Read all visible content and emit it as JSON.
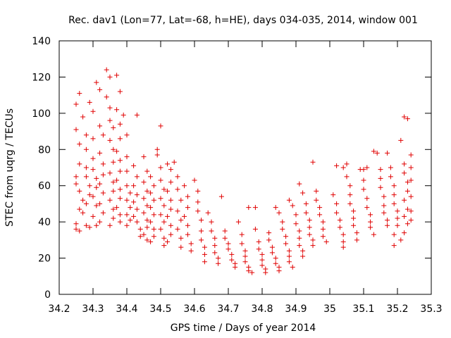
{
  "chart_data": {
    "type": "scatter",
    "title": "Rec. dav1 (Lon=77, Lat=-68, h=HE), days 034-035, 2014, window 001",
    "xlabel": "GPS time / Days of year 2014",
    "ylabel": "STEC from uqrg / TECUs",
    "xlim": [
      34.2,
      35.3
    ],
    "ylim": [
      0,
      140
    ],
    "x_ticks": [
      "34.2",
      "34.3",
      "34.4",
      "34.5",
      "34.6",
      "34.7",
      "34.8",
      "34.9",
      "35",
      "35.1",
      "35.2",
      "35.3"
    ],
    "y_ticks": [
      "0",
      "20",
      "40",
      "60",
      "80",
      "100",
      "120",
      "140"
    ],
    "grid": false,
    "marker": "plus",
    "color": "#e00000",
    "series": [
      {
        "points": [
          [
            34.25,
            105
          ],
          [
            34.25,
            91
          ],
          [
            34.26,
            83
          ],
          [
            34.26,
            72
          ],
          [
            34.25,
            65
          ],
          [
            34.25,
            61
          ],
          [
            34.26,
            57
          ],
          [
            34.27,
            52
          ],
          [
            34.26,
            47
          ],
          [
            34.25,
            39
          ],
          [
            34.25,
            36
          ],
          [
            34.26,
            35
          ],
          [
            34.26,
            111
          ],
          [
            34.27,
            98
          ],
          [
            34.28,
            88
          ],
          [
            34.28,
            80
          ],
          [
            34.28,
            70
          ],
          [
            34.28,
            65
          ],
          [
            34.29,
            60
          ],
          [
            34.29,
            55
          ],
          [
            34.28,
            50
          ],
          [
            34.27,
            45
          ],
          [
            34.28,
            38
          ],
          [
            34.29,
            37
          ],
          [
            34.29,
            106
          ],
          [
            34.3,
            101
          ],
          [
            34.3,
            86
          ],
          [
            34.3,
            75
          ],
          [
            34.3,
            69
          ],
          [
            34.31,
            64
          ],
          [
            34.31,
            59
          ],
          [
            34.3,
            54
          ],
          [
            34.31,
            49
          ],
          [
            34.3,
            43
          ],
          [
            34.31,
            38
          ],
          [
            34.31,
            117
          ],
          [
            34.32,
            113
          ],
          [
            34.32,
            93
          ],
          [
            34.33,
            88
          ],
          [
            34.32,
            78
          ],
          [
            34.33,
            72
          ],
          [
            34.33,
            66
          ],
          [
            34.32,
            61
          ],
          [
            34.33,
            56
          ],
          [
            34.32,
            50
          ],
          [
            34.33,
            45
          ],
          [
            34.32,
            40
          ],
          [
            34.34,
            124
          ],
          [
            34.35,
            120
          ],
          [
            34.34,
            109
          ],
          [
            34.35,
            103
          ],
          [
            34.35,
            96
          ],
          [
            34.36,
            92
          ],
          [
            34.35,
            85
          ],
          [
            34.36,
            80
          ],
          [
            34.36,
            73
          ],
          [
            34.35,
            67
          ],
          [
            34.36,
            62
          ],
          [
            34.36,
            57
          ],
          [
            34.35,
            52
          ],
          [
            34.36,
            47
          ],
          [
            34.36,
            42
          ],
          [
            34.35,
            38
          ],
          [
            34.37,
            121
          ],
          [
            34.38,
            112
          ],
          [
            34.37,
            102
          ],
          [
            34.38,
            94
          ],
          [
            34.38,
            86
          ],
          [
            34.37,
            79
          ],
          [
            34.38,
            74
          ],
          [
            34.38,
            68
          ],
          [
            34.37,
            63
          ],
          [
            34.38,
            58
          ],
          [
            34.38,
            53
          ],
          [
            34.37,
            48
          ],
          [
            34.38,
            44
          ],
          [
            34.38,
            40
          ],
          [
            34.39,
            99
          ],
          [
            34.4,
            88
          ],
          [
            34.4,
            76
          ],
          [
            34.4,
            68
          ],
          [
            34.4,
            60
          ],
          [
            34.41,
            56
          ],
          [
            34.4,
            52
          ],
          [
            34.41,
            48
          ],
          [
            34.4,
            44
          ],
          [
            34.41,
            41
          ],
          [
            34.4,
            38
          ],
          [
            34.42,
            71
          ],
          [
            34.43,
            65
          ],
          [
            34.42,
            60
          ],
          [
            34.43,
            55
          ],
          [
            34.42,
            51
          ],
          [
            34.43,
            47
          ],
          [
            34.42,
            43
          ],
          [
            34.43,
            40
          ],
          [
            34.44,
            36
          ],
          [
            34.44,
            32
          ],
          [
            34.43,
            99
          ],
          [
            34.45,
            76
          ],
          [
            34.46,
            68
          ],
          [
            34.45,
            62
          ],
          [
            34.46,
            57
          ],
          [
            34.45,
            53
          ],
          [
            34.46,
            49
          ],
          [
            34.45,
            45
          ],
          [
            34.46,
            41
          ],
          [
            34.46,
            37
          ],
          [
            34.45,
            33
          ],
          [
            34.46,
            30
          ],
          [
            34.47,
            65
          ],
          [
            34.48,
            60
          ],
          [
            34.47,
            56
          ],
          [
            34.48,
            52
          ],
          [
            34.47,
            48
          ],
          [
            34.48,
            44
          ],
          [
            34.47,
            40
          ],
          [
            34.48,
            36
          ],
          [
            34.48,
            32
          ],
          [
            34.47,
            29
          ],
          [
            34.49,
            80
          ],
          [
            34.49,
            77
          ],
          [
            34.5,
            93
          ],
          [
            34.5,
            70
          ],
          [
            34.5,
            63
          ],
          [
            34.51,
            58
          ],
          [
            34.5,
            53
          ],
          [
            34.51,
            49
          ],
          [
            34.5,
            44
          ],
          [
            34.51,
            40
          ],
          [
            34.5,
            36
          ],
          [
            34.51,
            31
          ],
          [
            34.51,
            27
          ],
          [
            34.52,
            72
          ],
          [
            34.53,
            69
          ],
          [
            34.53,
            62
          ],
          [
            34.52,
            57
          ],
          [
            34.53,
            52
          ],
          [
            34.53,
            47
          ],
          [
            34.52,
            43
          ],
          [
            34.53,
            38
          ],
          [
            34.53,
            33
          ],
          [
            34.52,
            29
          ],
          [
            34.54,
            73
          ],
          [
            34.55,
            65
          ],
          [
            34.55,
            58
          ],
          [
            34.56,
            52
          ],
          [
            34.55,
            46
          ],
          [
            34.56,
            41
          ],
          [
            34.55,
            36
          ],
          [
            34.56,
            31
          ],
          [
            34.56,
            26
          ],
          [
            34.57,
            60
          ],
          [
            34.58,
            54
          ],
          [
            34.58,
            48
          ],
          [
            34.57,
            43
          ],
          [
            34.58,
            38
          ],
          [
            34.58,
            33
          ],
          [
            34.59,
            28
          ],
          [
            34.59,
            24
          ],
          [
            34.6,
            63
          ],
          [
            34.61,
            57
          ],
          [
            34.61,
            51
          ],
          [
            34.61,
            46
          ],
          [
            34.62,
            41
          ],
          [
            34.62,
            35
          ],
          [
            34.62,
            30
          ],
          [
            34.63,
            26
          ],
          [
            34.63,
            22
          ],
          [
            34.63,
            18
          ],
          [
            34.64,
            45
          ],
          [
            34.65,
            40
          ],
          [
            34.65,
            35
          ],
          [
            34.66,
            31
          ],
          [
            34.66,
            27
          ],
          [
            34.66,
            23
          ],
          [
            34.67,
            20
          ],
          [
            34.67,
            17
          ],
          [
            34.68,
            54
          ],
          [
            34.69,
            35
          ],
          [
            34.69,
            31
          ],
          [
            34.7,
            28
          ],
          [
            34.7,
            25
          ],
          [
            34.71,
            22
          ],
          [
            34.71,
            19
          ],
          [
            34.72,
            17
          ],
          [
            34.72,
            15
          ],
          [
            34.73,
            40
          ],
          [
            34.74,
            33
          ],
          [
            34.74,
            28
          ],
          [
            34.75,
            24
          ],
          [
            34.75,
            21
          ],
          [
            34.75,
            18
          ],
          [
            34.76,
            15
          ],
          [
            34.76,
            13
          ],
          [
            34.77,
            12
          ],
          [
            34.76,
            48
          ],
          [
            34.78,
            48
          ],
          [
            34.78,
            36
          ],
          [
            34.79,
            29
          ],
          [
            34.79,
            25
          ],
          [
            34.8,
            22
          ],
          [
            34.8,
            19
          ],
          [
            34.8,
            16
          ],
          [
            34.81,
            14
          ],
          [
            34.81,
            12
          ],
          [
            34.82,
            34
          ],
          [
            34.82,
            30
          ],
          [
            34.83,
            26
          ],
          [
            34.83,
            23
          ],
          [
            34.84,
            20
          ],
          [
            34.84,
            17
          ],
          [
            34.85,
            15
          ],
          [
            34.85,
            13
          ],
          [
            34.84,
            48
          ],
          [
            34.85,
            45
          ],
          [
            34.86,
            40
          ],
          [
            34.86,
            36
          ],
          [
            34.87,
            32
          ],
          [
            34.87,
            28
          ],
          [
            34.88,
            24
          ],
          [
            34.88,
            21
          ],
          [
            34.88,
            18
          ],
          [
            34.89,
            15
          ],
          [
            34.88,
            52
          ],
          [
            34.89,
            49
          ],
          [
            34.9,
            44
          ],
          [
            34.9,
            39
          ],
          [
            34.91,
            35
          ],
          [
            34.91,
            31
          ],
          [
            34.91,
            27
          ],
          [
            34.92,
            24
          ],
          [
            34.92,
            21
          ],
          [
            34.91,
            61
          ],
          [
            34.92,
            56
          ],
          [
            34.93,
            50
          ],
          [
            34.93,
            45
          ],
          [
            34.94,
            41
          ],
          [
            34.94,
            37
          ],
          [
            34.94,
            33
          ],
          [
            34.95,
            30
          ],
          [
            34.95,
            27
          ],
          [
            34.95,
            73
          ],
          [
            34.96,
            57
          ],
          [
            34.96,
            52
          ],
          [
            34.97,
            48
          ],
          [
            34.97,
            44
          ],
          [
            34.98,
            40
          ],
          [
            34.98,
            36
          ],
          [
            34.98,
            32
          ],
          [
            34.99,
            29
          ],
          [
            35.01,
            55
          ],
          [
            35.02,
            50
          ],
          [
            35.02,
            45
          ],
          [
            35.03,
            41
          ],
          [
            35.03,
            37
          ],
          [
            35.04,
            33
          ],
          [
            35.04,
            29
          ],
          [
            35.04,
            26
          ],
          [
            35.02,
            71
          ],
          [
            35.04,
            70
          ],
          [
            35.05,
            72
          ],
          [
            35.05,
            65
          ],
          [
            35.06,
            60
          ],
          [
            35.06,
            55
          ],
          [
            35.06,
            50
          ],
          [
            35.07,
            46
          ],
          [
            35.07,
            42
          ],
          [
            35.07,
            38
          ],
          [
            35.08,
            34
          ],
          [
            35.08,
            30
          ],
          [
            35.09,
            69
          ],
          [
            35.1,
            69
          ],
          [
            35.11,
            70
          ],
          [
            35.1,
            63
          ],
          [
            35.1,
            58
          ],
          [
            35.11,
            53
          ],
          [
            35.11,
            48
          ],
          [
            35.12,
            44
          ],
          [
            35.12,
            40
          ],
          [
            35.12,
            37
          ],
          [
            35.13,
            33
          ],
          [
            35.13,
            79
          ],
          [
            35.14,
            78
          ],
          [
            35.15,
            69
          ],
          [
            35.15,
            64
          ],
          [
            35.15,
            59
          ],
          [
            35.16,
            54
          ],
          [
            35.16,
            49
          ],
          [
            35.16,
            45
          ],
          [
            35.17,
            41
          ],
          [
            35.17,
            38
          ],
          [
            35.17,
            78
          ],
          [
            35.18,
            70
          ],
          [
            35.18,
            65
          ],
          [
            35.19,
            60
          ],
          [
            35.19,
            55
          ],
          [
            35.19,
            50
          ],
          [
            35.2,
            46
          ],
          [
            35.2,
            42
          ],
          [
            35.2,
            38
          ],
          [
            35.19,
            33
          ],
          [
            35.19,
            27
          ],
          [
            35.21,
            85
          ],
          [
            35.22,
            98
          ],
          [
            35.22,
            72
          ],
          [
            35.22,
            67
          ],
          [
            35.23,
            62
          ],
          [
            35.23,
            57
          ],
          [
            35.22,
            52
          ],
          [
            35.23,
            47
          ],
          [
            35.22,
            43
          ],
          [
            35.23,
            39
          ],
          [
            35.22,
            34
          ],
          [
            35.21,
            30
          ],
          [
            35.23,
            97
          ],
          [
            35.24,
            77
          ],
          [
            35.24,
            70
          ],
          [
            35.24,
            63
          ],
          [
            35.24,
            54
          ],
          [
            35.24,
            46
          ],
          [
            35.24,
            41
          ]
        ]
      }
    ]
  }
}
